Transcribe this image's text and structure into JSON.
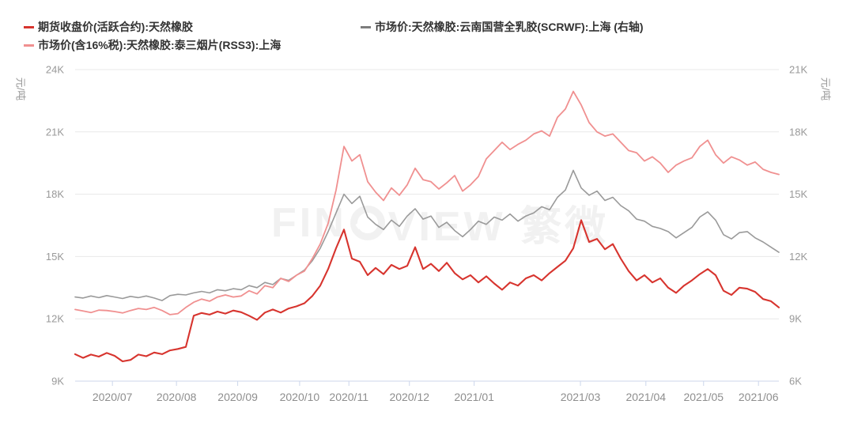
{
  "legend": {
    "items": [
      {
        "label": "期货收盘价(活跃合约):天然橡胶",
        "color": "#d7342e"
      },
      {
        "label": "市场价:天然橡胶:云南国营全乳胶(SCRWF):上海 (右轴)",
        "color": "#7d7d7d"
      },
      {
        "label": "市场价(含16%税):天然橡胶:泰三烟片(RSS3):上海",
        "color": "#f09090"
      }
    ]
  },
  "watermark": {
    "left": "FIN",
    "right": "VIEW 繁微"
  },
  "chart_data": {
    "type": "line",
    "title": "",
    "grid": true,
    "legend_position": "top",
    "y_axis_left": {
      "unit": "元/吨",
      "min": 9000,
      "max": 24000,
      "tick_labels": [
        "24K",
        "21K",
        "18K",
        "15K",
        "12K",
        "9K"
      ]
    },
    "y_axis_right": {
      "unit": "元/吨",
      "min": 6000,
      "max": 21000,
      "tick_labels": [
        "21K",
        "18K",
        "15K",
        "12K",
        "9K",
        "6K"
      ]
    },
    "x_axis": {
      "ticks": [
        {
          "label": "2020/07",
          "f": 0.053
        },
        {
          "label": "2020/08",
          "f": 0.144
        },
        {
          "label": "2020/09",
          "f": 0.231
        },
        {
          "label": "2020/10",
          "f": 0.319
        },
        {
          "label": "2020/11",
          "f": 0.389
        },
        {
          "label": "2020/12",
          "f": 0.475
        },
        {
          "label": "2021/01",
          "f": 0.567
        },
        {
          "label": "2021/03",
          "f": 0.718
        },
        {
          "label": "2021/04",
          "f": 0.811
        },
        {
          "label": "2021/05",
          "f": 0.893
        },
        {
          "label": "2021/06",
          "f": 0.971
        }
      ]
    },
    "series": [
      {
        "name": "市场价:天然橡胶:云南国营全乳胶(SCRWF):上海",
        "axis": "right",
        "color": "#9a9a9a",
        "width": 1.6,
        "values_k": [
          10.05,
          10.0,
          10.1,
          10.02,
          10.12,
          10.05,
          9.98,
          10.08,
          10.02,
          10.1,
          10.0,
          9.88,
          10.12,
          10.18,
          10.15,
          10.25,
          10.32,
          10.25,
          10.4,
          10.35,
          10.45,
          10.4,
          10.6,
          10.5,
          10.75,
          10.65,
          10.95,
          10.85,
          11.1,
          11.35,
          11.8,
          12.4,
          13.2,
          14.1,
          15.0,
          14.55,
          14.9,
          13.9,
          13.55,
          13.3,
          13.75,
          13.45,
          13.95,
          14.3,
          13.8,
          13.95,
          13.4,
          13.65,
          13.25,
          12.95,
          13.3,
          13.7,
          13.55,
          13.9,
          13.75,
          14.05,
          13.7,
          13.95,
          14.1,
          14.4,
          14.25,
          14.85,
          15.2,
          16.15,
          15.3,
          14.95,
          15.15,
          14.7,
          14.85,
          14.45,
          14.2,
          13.8,
          13.7,
          13.45,
          13.35,
          13.2,
          12.9,
          13.15,
          13.4,
          13.9,
          14.15,
          13.75,
          13.05,
          12.85,
          13.15,
          13.2,
          12.9,
          12.7,
          12.45,
          12.2
        ]
      },
      {
        "name": "市场价(含16%税):天然橡胶:泰三烟片(RSS3):上海",
        "axis": "left",
        "color": "#f09090",
        "width": 1.8,
        "values_k": [
          12.45,
          12.38,
          12.3,
          12.42,
          12.4,
          12.35,
          12.28,
          12.4,
          12.5,
          12.45,
          12.55,
          12.4,
          12.2,
          12.25,
          12.55,
          12.8,
          12.95,
          12.85,
          13.05,
          13.15,
          13.05,
          13.1,
          13.35,
          13.2,
          13.6,
          13.5,
          13.95,
          13.8,
          14.1,
          14.3,
          14.9,
          15.6,
          16.6,
          18.2,
          20.3,
          19.6,
          19.9,
          18.6,
          18.1,
          17.7,
          18.3,
          17.95,
          18.45,
          19.25,
          18.7,
          18.6,
          18.25,
          18.55,
          18.9,
          18.15,
          18.45,
          18.85,
          19.7,
          20.1,
          20.5,
          20.15,
          20.4,
          20.6,
          20.9,
          21.05,
          20.8,
          21.7,
          22.1,
          22.95,
          22.3,
          21.45,
          21.0,
          20.8,
          20.9,
          20.5,
          20.1,
          20.0,
          19.6,
          19.8,
          19.5,
          19.05,
          19.4,
          19.6,
          19.75,
          20.3,
          20.6,
          19.9,
          19.5,
          19.8,
          19.65,
          19.4,
          19.55,
          19.2,
          19.05,
          18.95
        ]
      },
      {
        "name": "期货收盘价(活跃合约):天然橡胶",
        "axis": "left",
        "color": "#d7342e",
        "width": 2.1,
        "values_k": [
          10.3,
          10.12,
          10.28,
          10.18,
          10.36,
          10.22,
          9.95,
          10.02,
          10.28,
          10.2,
          10.38,
          10.3,
          10.48,
          10.55,
          10.65,
          12.15,
          12.28,
          12.2,
          12.35,
          12.25,
          12.4,
          12.32,
          12.15,
          11.95,
          12.3,
          12.45,
          12.3,
          12.5,
          12.6,
          12.75,
          13.1,
          13.6,
          14.4,
          15.4,
          16.3,
          14.9,
          14.75,
          14.1,
          14.45,
          14.15,
          14.6,
          14.4,
          14.55,
          15.45,
          14.4,
          14.65,
          14.3,
          14.7,
          14.2,
          13.9,
          14.1,
          13.75,
          14.05,
          13.7,
          13.4,
          13.75,
          13.6,
          13.95,
          14.1,
          13.85,
          14.2,
          14.5,
          14.8,
          15.4,
          16.75,
          15.7,
          15.85,
          15.35,
          15.6,
          14.9,
          14.3,
          13.85,
          14.1,
          13.75,
          13.95,
          13.5,
          13.25,
          13.6,
          13.85,
          14.15,
          14.4,
          14.1,
          13.35,
          13.15,
          13.5,
          13.45,
          13.3,
          12.95,
          12.85,
          12.55
        ]
      }
    ]
  }
}
